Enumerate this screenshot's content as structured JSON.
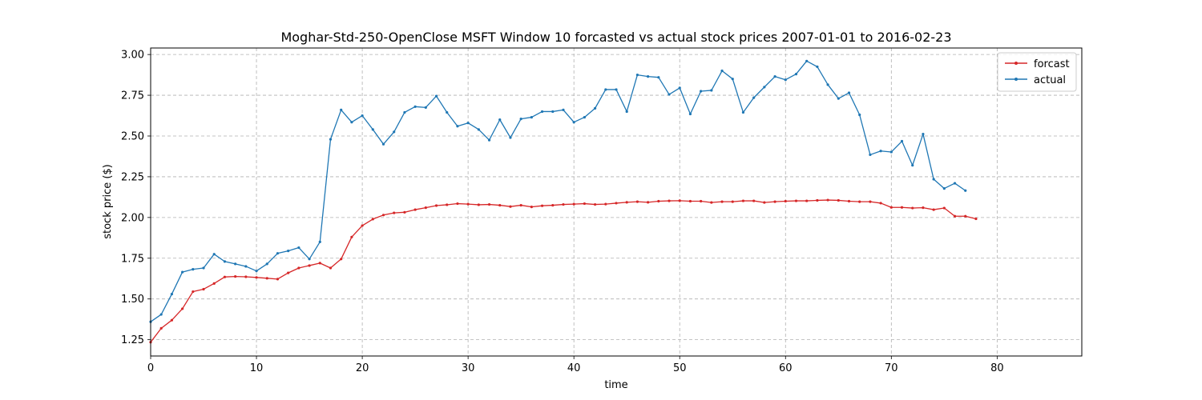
{
  "chart_data": {
    "type": "line",
    "title": "Moghar-Std-250-OpenClose MSFT Window 10 forcasted vs actual stock prices 2007-01-01 to 2016-02-23",
    "xlabel": "time",
    "ylabel": "stock price ($)",
    "xlim": [
      0,
      88
    ],
    "ylim": [
      1.15,
      3.04
    ],
    "xticks": [
      0,
      10,
      20,
      30,
      40,
      50,
      60,
      70,
      80
    ],
    "yticks": [
      1.25,
      1.5,
      1.75,
      2.0,
      2.25,
      2.5,
      2.75,
      3.0
    ],
    "xtick_labels": [
      "0",
      "10",
      "20",
      "30",
      "40",
      "50",
      "60",
      "70",
      "80"
    ],
    "ytick_labels": [
      "1.25",
      "1.50",
      "1.75",
      "2.00",
      "2.25",
      "2.50",
      "2.75",
      "3.00"
    ],
    "grid": true,
    "legend_position": "top-right",
    "series": [
      {
        "name": "forcast",
        "color": "#d62728",
        "values": [
          1.235,
          1.32,
          1.37,
          1.44,
          1.545,
          1.56,
          1.595,
          1.635,
          1.638,
          1.636,
          1.632,
          1.627,
          1.622,
          1.66,
          1.69,
          1.705,
          1.72,
          1.69,
          1.745,
          1.88,
          1.95,
          1.99,
          2.015,
          2.028,
          2.032,
          2.048,
          2.06,
          2.073,
          2.078,
          2.085,
          2.082,
          2.078,
          2.08,
          2.075,
          2.067,
          2.075,
          2.065,
          2.072,
          2.075,
          2.08,
          2.082,
          2.085,
          2.08,
          2.082,
          2.088,
          2.093,
          2.097,
          2.093,
          2.1,
          2.102,
          2.103,
          2.1,
          2.1,
          2.092,
          2.097,
          2.097,
          2.102,
          2.102,
          2.092,
          2.097,
          2.1,
          2.102,
          2.102,
          2.105,
          2.107,
          2.105,
          2.1,
          2.097,
          2.097,
          2.088,
          2.062,
          2.062,
          2.058,
          2.06,
          2.048,
          2.058,
          2.008,
          2.008,
          1.992
        ]
      },
      {
        "name": "actual",
        "color": "#1f77b4",
        "values": [
          1.36,
          1.405,
          1.53,
          1.665,
          1.682,
          1.69,
          1.775,
          1.73,
          1.715,
          1.7,
          1.672,
          1.715,
          1.78,
          1.795,
          1.815,
          1.745,
          1.85,
          2.48,
          2.66,
          2.585,
          2.625,
          2.54,
          2.45,
          2.525,
          2.645,
          2.68,
          2.675,
          2.745,
          2.645,
          2.56,
          2.58,
          2.54,
          2.475,
          2.6,
          2.49,
          2.605,
          2.615,
          2.65,
          2.65,
          2.66,
          2.585,
          2.615,
          2.67,
          2.785,
          2.785,
          2.65,
          2.875,
          2.865,
          2.86,
          2.755,
          2.795,
          2.635,
          2.775,
          2.78,
          2.9,
          2.85,
          2.645,
          2.735,
          2.8,
          2.865,
          2.845,
          2.88,
          2.96,
          2.925,
          2.815,
          2.73,
          2.765,
          2.63,
          2.385,
          2.408,
          2.402,
          2.468,
          2.32,
          2.512,
          2.235,
          2.178,
          2.21,
          2.165
        ]
      }
    ]
  }
}
